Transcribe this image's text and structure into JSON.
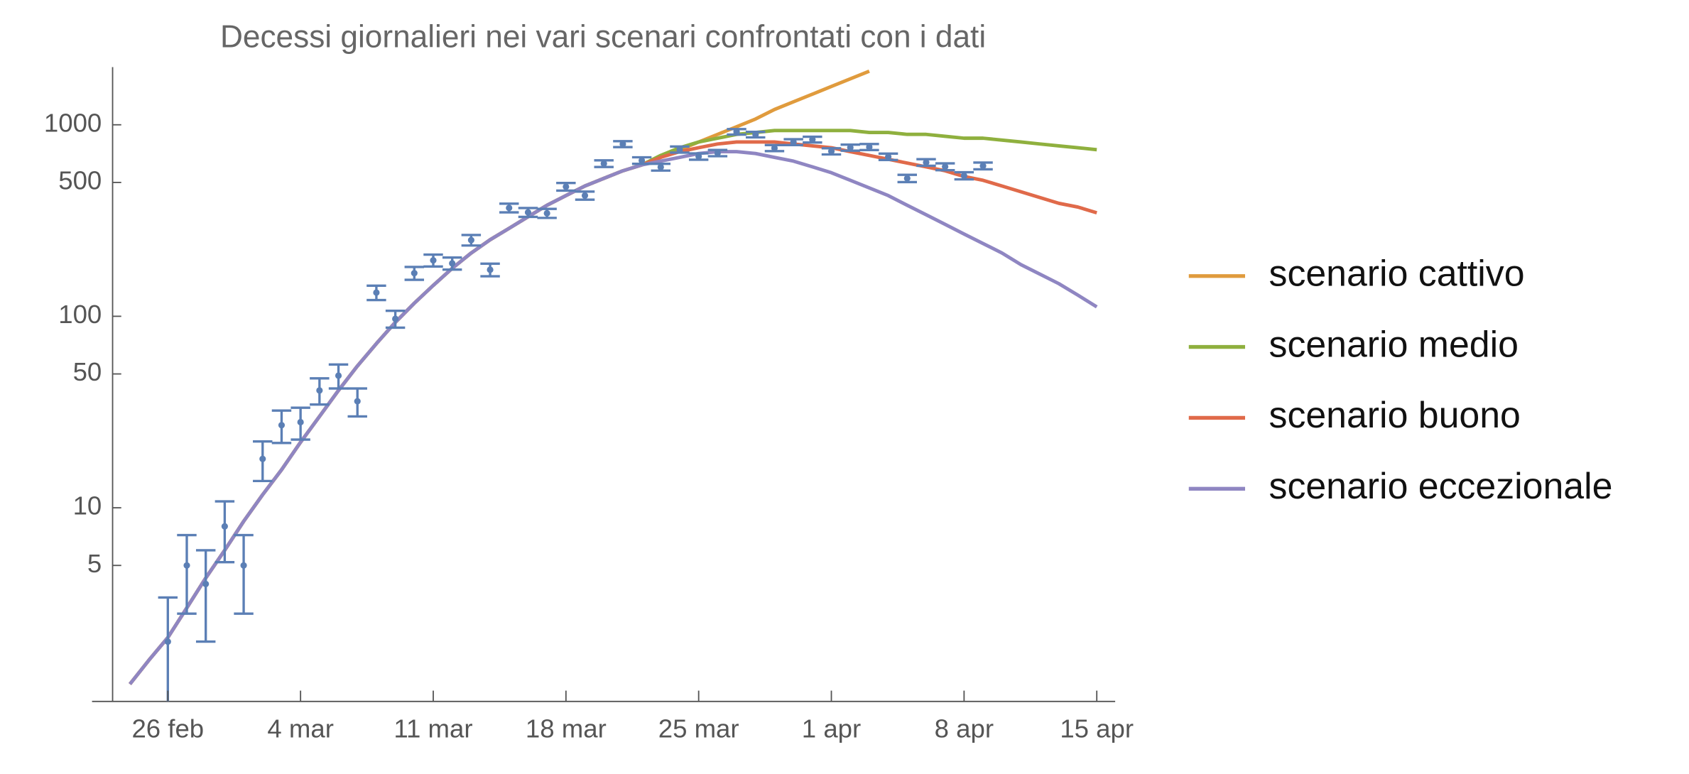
{
  "chart_data": {
    "type": "line",
    "title": "Decessi giornalieri nei vari scenari confrontati con i dati",
    "categories": [
      null,
      null,
      "26 feb",
      null,
      null,
      null,
      null,
      null,
      null,
      "4 mar",
      null,
      null,
      null,
      null,
      null,
      null,
      "11 mar",
      null,
      null,
      null,
      null,
      null,
      null,
      "18 mar",
      null,
      null,
      null,
      null,
      null,
      null,
      "25 mar",
      null,
      null,
      null,
      null,
      null,
      null,
      "1 apr",
      null,
      null,
      null,
      null,
      null,
      null,
      "8 apr",
      null,
      null,
      null,
      null,
      null,
      null,
      "15 apr"
    ],
    "ylog": true,
    "ylim": [
      1,
      2000
    ],
    "yticks": [
      5,
      10,
      50,
      100,
      500,
      1000
    ],
    "series": [
      {
        "name": "scenario cattivo",
        "color": "#e09b3d",
        "values": [
          1.2,
          1.6,
          2.1,
          3,
          4.3,
          6,
          8.5,
          11.7,
          15.8,
          22,
          30,
          41,
          55,
          72,
          93,
          117,
          145,
          178,
          214,
          251,
          288,
          331,
          380,
          427,
          479,
          525,
          575,
          617,
          676,
          741,
          813,
          891,
          977,
          1072,
          1202,
          1318,
          1445,
          1585,
          1738,
          1905,
          null,
          null,
          null,
          null,
          null,
          null,
          null,
          null,
          null,
          null,
          null,
          null
        ]
      },
      {
        "name": "scenario medio",
        "color": "#8fb03e",
        "values": [
          1.2,
          1.6,
          2.1,
          3,
          4.3,
          6,
          8.5,
          11.7,
          15.8,
          22,
          30,
          41,
          55,
          72,
          93,
          117,
          145,
          178,
          214,
          251,
          288,
          331,
          380,
          427,
          479,
          525,
          575,
          617,
          692,
          759,
          813,
          851,
          891,
          912,
          933,
          933,
          933,
          933,
          933,
          912,
          912,
          891,
          891,
          871,
          851,
          851,
          832,
          813,
          794,
          776,
          759,
          741
        ]
      },
      {
        "name": "scenario buono",
        "color": "#e06a4a",
        "values": [
          1.2,
          1.6,
          2.1,
          3,
          4.3,
          6,
          8.5,
          11.7,
          15.8,
          22,
          30,
          41,
          55,
          72,
          93,
          117,
          145,
          178,
          214,
          251,
          288,
          331,
          380,
          427,
          479,
          525,
          575,
          617,
          676,
          724,
          759,
          794,
          813,
          813,
          813,
          794,
          776,
          759,
          724,
          692,
          661,
          631,
          603,
          575,
          537,
          513,
          479,
          447,
          417,
          389,
          372,
          347
        ]
      },
      {
        "name": "scenario eccezionale",
        "color": "#8f86c2",
        "values": [
          1.2,
          1.6,
          2.1,
          3,
          4.3,
          6,
          8.5,
          11.7,
          15.8,
          22,
          30,
          41,
          55,
          72,
          93,
          117,
          145,
          178,
          214,
          251,
          288,
          331,
          380,
          427,
          479,
          525,
          575,
          617,
          646,
          676,
          708,
          724,
          724,
          708,
          676,
          646,
          603,
          562,
          513,
          468,
          427,
          380,
          339,
          302,
          269,
          240,
          214,
          186,
          166,
          148,
          129,
          112
        ]
      }
    ],
    "data_points": {
      "color": "#5b7fb5",
      "values": [
        null,
        null,
        2,
        5,
        4,
        8,
        5,
        18,
        27,
        28,
        41,
        49,
        36,
        133,
        97,
        168,
        196,
        189,
        250,
        175,
        368,
        349,
        345,
        475,
        427,
        627,
        793,
        651,
        601,
        743,
        683,
        712,
        919,
        889,
        756,
        812,
        837,
        727,
        760,
        766,
        681,
        525,
        636,
        604,
        542,
        610,
        null,
        null,
        null,
        null,
        null,
        null
      ],
      "errors": [
        null,
        null,
        1.4,
        2.2,
        2.0,
        2.8,
        2.2,
        4.2,
        5.2,
        5.3,
        6.4,
        7.0,
        6.0,
        11.5,
        9.8,
        13.0,
        14.0,
        13.7,
        15.8,
        13.2,
        19.2,
        18.7,
        18.6,
        21.8,
        20.7,
        25.0,
        28.2,
        25.5,
        24.5,
        27.3,
        26.1,
        26.7,
        30.3,
        29.8,
        27.5,
        28.5,
        28.9,
        27.0,
        27.6,
        27.7,
        26.1,
        22.9,
        25.2,
        24.6,
        23.3,
        24.7,
        null,
        null,
        null,
        null,
        null,
        null
      ]
    }
  }
}
